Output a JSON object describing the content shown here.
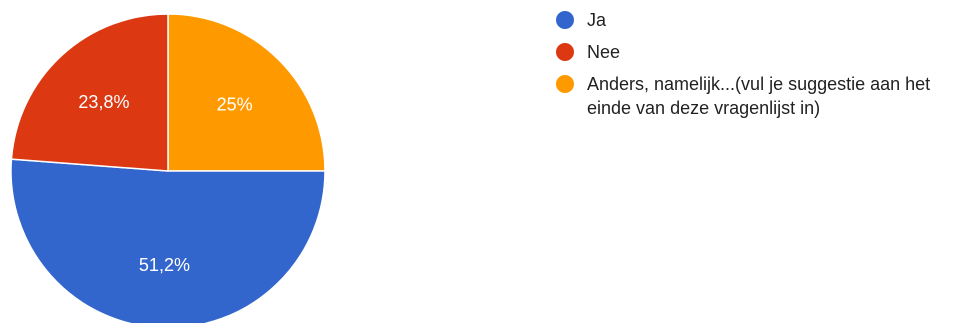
{
  "chart_data": {
    "type": "pie",
    "slices": [
      {
        "label": "Ja",
        "value": 51.2,
        "display": "51,2%",
        "color": "#3366cc"
      },
      {
        "label": "Nee",
        "value": 23.8,
        "display": "23,8%",
        "color": "#dc3912"
      },
      {
        "label": "Anders, namelijk...(vul je suggestie aan het einde van deze vragenlijst in)",
        "value": 25,
        "display": "25%",
        "color": "#ff9900"
      }
    ],
    "legend_position": "right"
  }
}
